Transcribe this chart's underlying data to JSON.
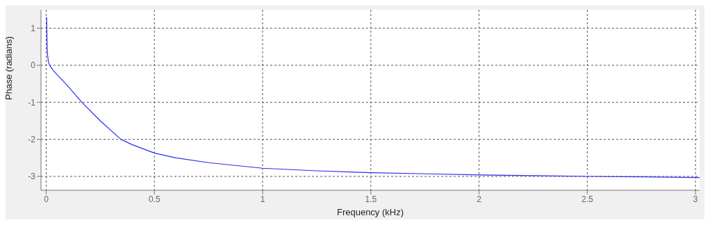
{
  "chart_data": {
    "type": "line",
    "xlabel": "Frequency (kHz)",
    "ylabel": "Phase (radians)",
    "x": [
      0.002,
      0.004,
      0.006,
      0.01,
      0.016,
      0.03,
      0.05,
      0.1,
      0.165,
      0.25,
      0.345,
      0.4,
      0.5,
      0.6,
      0.75,
      1,
      1.25,
      1.5,
      1.75,
      2,
      2.25,
      2.5,
      2.75,
      3,
      3.019
    ],
    "series": [
      {
        "color": "#2b2bf0",
        "values": [
          1.3,
          0.6,
          0.3,
          0.1,
          0,
          -0.12,
          -0.25,
          -0.56,
          -1,
          -1.5,
          -2,
          -2.15,
          -2.37,
          -2.5,
          -2.63,
          -2.78,
          -2.85,
          -2.9,
          -2.93,
          -2.96,
          -2.98,
          -3,
          -3.01,
          -3.03,
          -3.03
        ]
      }
    ],
    "xlim": [
      -0.024,
      3.019
    ],
    "ylim": [
      -3.375,
      1.5
    ],
    "xticks": [
      0,
      0.5,
      1,
      1.5,
      2,
      2.5,
      3
    ],
    "yticks": [
      -3,
      -2,
      -1,
      0,
      1
    ],
    "grid": true,
    "marker": "none",
    "line_style": "solid",
    "legend": false
  }
}
